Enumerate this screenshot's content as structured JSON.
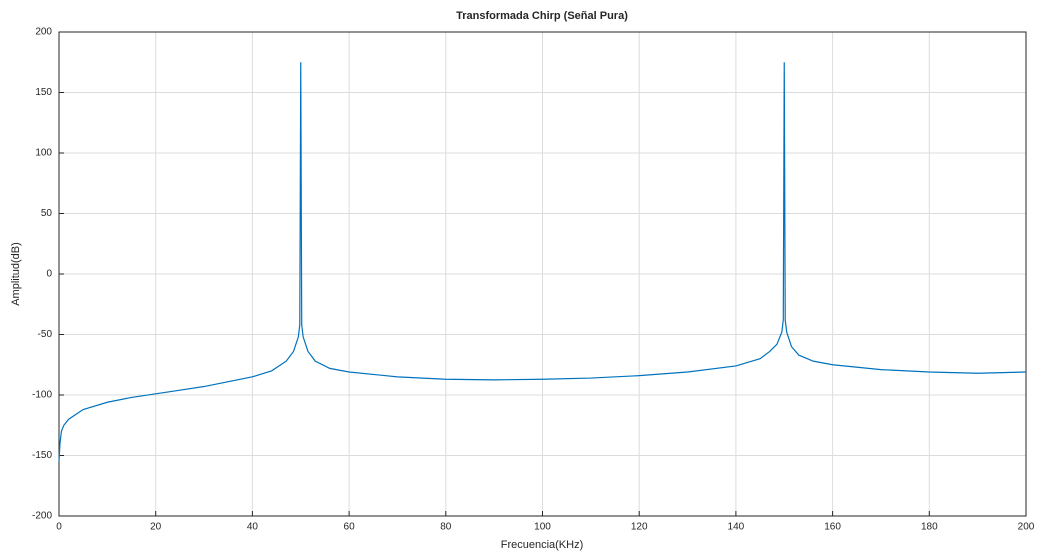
{
  "chart_data": {
    "type": "line",
    "title": "Transformada Chirp (Señal Pura)",
    "x_label": "Frecuencia(KHz)",
    "y_label": "Amplitud(dB)",
    "x": [
      0,
      0.2,
      0.5,
      1,
      2,
      5,
      10,
      15,
      20,
      25,
      30,
      35,
      40,
      44,
      47,
      48.5,
      49.5,
      49.8,
      50,
      50.2,
      50.5,
      51.5,
      53,
      56,
      60,
      70,
      80,
      90,
      100,
      110,
      120,
      130,
      140,
      145,
      147,
      148.5,
      149.5,
      149.8,
      150,
      150.2,
      150.5,
      151.5,
      153,
      156,
      160,
      170,
      180,
      190,
      200
    ],
    "values": [
      -155,
      -140,
      -130,
      -125,
      -120,
      -112,
      -106,
      -102,
      -99,
      -96,
      -93,
      -89,
      -85,
      -80,
      -72,
      -64,
      -52,
      -42,
      175,
      -42,
      -52,
      -64,
      -72,
      -78,
      -81,
      -85,
      -87,
      -87.5,
      -87,
      -86,
      -84,
      -81,
      -76,
      -70,
      -64,
      -58,
      -48,
      -38,
      175,
      -38,
      -48,
      -60,
      -67,
      -72,
      -75,
      -79,
      -81,
      -82,
      -81
    ],
    "color": "#0072bd",
    "xlim": [
      0,
      200
    ],
    "xticks": [
      0,
      20,
      40,
      60,
      80,
      100,
      120,
      140,
      160,
      180,
      200
    ],
    "ylim": [
      -200,
      200
    ],
    "yticks": [
      -200,
      -150,
      -100,
      -50,
      0,
      50,
      100,
      150,
      200
    ],
    "grid": true
  }
}
